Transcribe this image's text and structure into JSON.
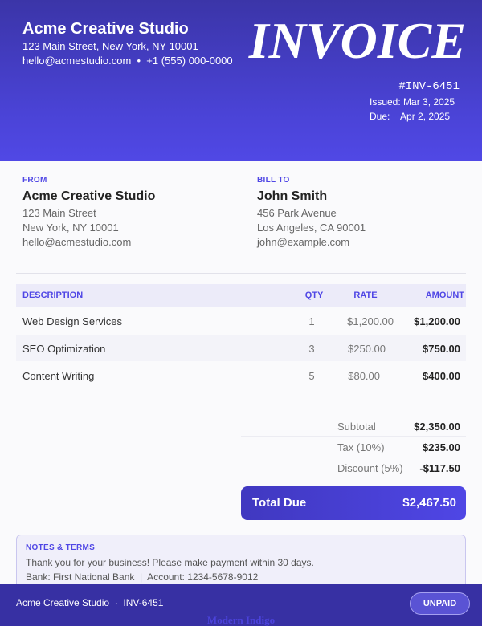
{
  "header": {
    "company": "Acme Creative Studio",
    "address": "123 Main Street, New York, NY 10001",
    "contact": "hello@acmestudio.com  •  +1 (555) 000-0000",
    "title": "INVOICE",
    "number": "#INV-6451",
    "issued": "Issued: Mar 3, 2025",
    "due": "Due:    Apr 2, 2025"
  },
  "from": {
    "label": "FROM",
    "name": "Acme Creative Studio",
    "lines": [
      "123 Main Street",
      "New York, NY 10001",
      "hello@acmestudio.com"
    ]
  },
  "bill_to": {
    "label": "BILL TO",
    "name": "John Smith",
    "lines": [
      "456 Park Avenue",
      "Los Angeles, CA 90001",
      "john@example.com"
    ]
  },
  "table": {
    "columns": [
      "DESCRIPTION",
      "QTY",
      "RATE",
      "AMOUNT"
    ],
    "rows": [
      [
        "Web Design Services",
        "1",
        "$1,200.00",
        "$1,200.00"
      ],
      [
        "SEO Optimization",
        "3",
        "$250.00",
        "$750.00"
      ],
      [
        "Content Writing",
        "5",
        "$80.00",
        "$400.00"
      ]
    ]
  },
  "totals": {
    "rows": [
      [
        "Subtotal",
        "$2,350.00"
      ],
      [
        "Tax (10%)",
        "$235.00"
      ],
      [
        "Discount (5%)",
        "-$117.50"
      ]
    ],
    "total_label": "Total Due",
    "total_value": "$2,467.50"
  },
  "notes": {
    "title": "NOTES & TERMS",
    "lines": [
      "Thank you for your business! Please make payment within 30 days.",
      "Bank: First National Bank  |  Account: 1234-5678-9012"
    ]
  },
  "footer": {
    "text": "Acme Creative Studio  ·  INV-6451",
    "status": "UNPAID",
    "watermark": "Modern Indigo"
  }
}
